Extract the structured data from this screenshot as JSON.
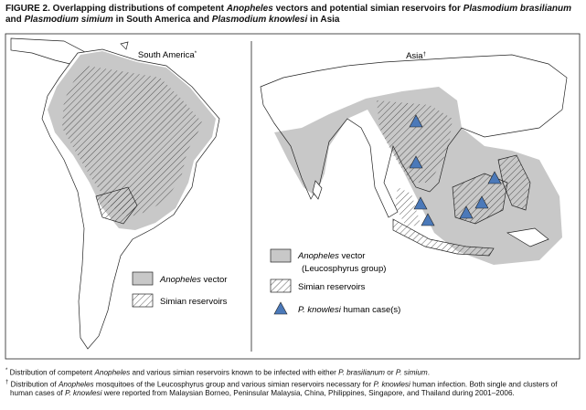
{
  "title": [
    "FIGURE 2. Overlapping distributions of competent ",
    "Anopheles",
    " vectors and potential simian reservoirs for ",
    "Plasmodium brasilianum",
    " and ",
    "Plasmodium simium",
    " in South America and ",
    "Plasmodium knowlesi",
    " in Asia"
  ],
  "panels": [
    {
      "label": "South America",
      "note_mark": "*",
      "legend": {
        "vector": [
          "Anopheles",
          " vector"
        ],
        "reservoir": "Simian reservoirs"
      }
    },
    {
      "label": "Asia",
      "note_mark": "†",
      "legend": {
        "vector": [
          "Anopheles",
          " vector"
        ],
        "vector_group": "(Leucosphyrus group)",
        "reservoir": "Simian reservoirs",
        "cases": [
          "P. knowlesi",
          " human case(s)"
        ]
      }
    }
  ],
  "footnotes": [
    [
      "*",
      " Distribution of competent ",
      "Anopheles",
      " and various simian reservoirs known to be infected with either ",
      "P. brasilianum",
      " or ",
      "P. simium",
      "."
    ],
    [
      "†",
      " Distribution of ",
      "Anopheles",
      " mosquitoes of the Leucosphyrus group and various simian reservoirs necessary for ",
      "P. knowlesi",
      " human infection. Both single and clusters of human cases of ",
      "P. knowlesi",
      " were reported from Malaysian Borneo, Peninsular Malaysia, China, Philippines, Singapore, and Thailand during 2001–2006."
    ]
  ]
}
